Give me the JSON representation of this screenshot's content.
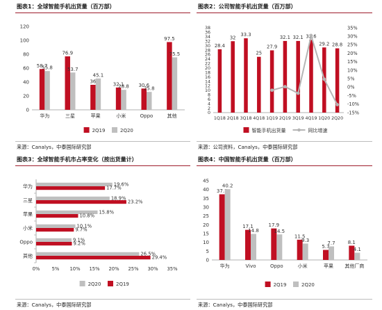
{
  "colors": {
    "red": "#c00f22",
    "gray": "#bfbfbf",
    "axis": "#999999",
    "text": "#333333",
    "lineGray": "#b5b5b5"
  },
  "figures": [
    {
      "title": "图表1：全球智能手机出货量（百万部）",
      "source": "来源：Canalys，中泰国际研究部"
    },
    {
      "title": "图表2：公司智能手机出货量（百万部）",
      "source": "来源：公司资料，Canalys，中泰国际研究部"
    },
    {
      "title": "图表3：全球智能手机市占率变化（按出货量计）",
      "source": "来源：Canalys，中泰国际研究部"
    },
    {
      "title": "图表4：中国智能手机出货量（百万部）",
      "source": "来源：Canalys，中泰国际研究部"
    }
  ],
  "chart_data": [
    {
      "type": "bar",
      "categories": [
        "华为",
        "三星",
        "苹果",
        "小米",
        "Oppo",
        "其他"
      ],
      "series": [
        {
          "name": "2Q19",
          "values": [
            58.7,
            76.9,
            36.0,
            32.1,
            30.6,
            97.5
          ]
        },
        {
          "name": "2Q20",
          "values": [
            55.8,
            53.7,
            45.1,
            28.8,
            25.8,
            75.5
          ]
        }
      ],
      "ylim": [
        0,
        120
      ],
      "yticks": [
        "0",
        "20",
        "40",
        "60",
        "80",
        "100",
        "120"
      ],
      "legend": "bottom"
    },
    {
      "type": "bar",
      "categories": [
        "1Q18",
        "2Q18",
        "3Q18",
        "4Q18",
        "1Q19",
        "2Q19",
        "3Q19",
        "4Q19",
        "1Q20",
        "2Q20"
      ],
      "series": [
        {
          "name": "智能手机出货量",
          "values": [
            28.4,
            32,
            33.3,
            25,
            27.9,
            32.1,
            32.1,
            32.6,
            29.2,
            28.8
          ],
          "labels": [
            "28.4",
            "32",
            "33.3",
            "25",
            "27.9",
            "32.1",
            "32.1",
            "32.6",
            "29.2",
            "28.8"
          ]
        },
        {
          "name": "同比增速",
          "type": "line",
          "axis": "right",
          "values": [
            null,
            null,
            null,
            null,
            -1.8,
            0.3,
            -3.6,
            30.4,
            4.7,
            -10.3
          ]
        }
      ],
      "ylim": [
        0,
        38
      ],
      "yticks": [
        "0",
        "2",
        "4",
        "6",
        "8",
        "10",
        "12",
        "14",
        "16",
        "18",
        "20",
        "22",
        "24",
        "26",
        "28",
        "30",
        "32",
        "34",
        "36",
        "38"
      ],
      "y2lim": [
        -15,
        35
      ],
      "y2ticks": [
        "-15%",
        "-10%",
        "-5%",
        "0%",
        "5%",
        "10%",
        "15%",
        "20%",
        "25%",
        "30%",
        "35%"
      ],
      "legend": "bottom"
    },
    {
      "type": "bar",
      "orientation": "horizontal",
      "categories": [
        "华为",
        "三星",
        "苹果",
        "小米",
        "Oppo",
        "其他"
      ],
      "series": [
        {
          "name": "2Q20",
          "values": [
            19.6,
            18.9,
            15.8,
            10.1,
            9.1,
            26.5
          ],
          "labels": [
            "19.6%",
            "18.9%",
            "15.8%",
            "10.1%",
            "9.1%",
            "26.5%"
          ]
        },
        {
          "name": "2Q19",
          "values": [
            17.7,
            23.2,
            10.8,
            9.7,
            9.2,
            29.4
          ],
          "labels": [
            "17.7%",
            "23.2%",
            "10.8%",
            "9.7%",
            "9.2%",
            "29.4%"
          ]
        }
      ],
      "xlim": [
        0,
        35
      ],
      "xticks": [
        "0%",
        "5%",
        "10%",
        "15%",
        "20%",
        "25%",
        "30%",
        "35%"
      ],
      "legend": "bottom"
    },
    {
      "type": "bar",
      "categories": [
        "华为",
        "Vivo",
        "Oppo",
        "小米",
        "苹果",
        "其他厂商"
      ],
      "series": [
        {
          "name": "2Q19",
          "values": [
            37.3,
            17.1,
            17.9,
            11.5,
            5.7,
            8.1
          ]
        },
        {
          "name": "2Q20",
          "values": [
            40.2,
            14.8,
            14.5,
            9.3,
            7.7,
            4.1
          ]
        }
      ],
      "ylim": [
        0,
        45
      ],
      "yticks": [
        "0",
        "5",
        "10",
        "15",
        "20",
        "25",
        "30",
        "35",
        "40",
        "45"
      ],
      "legend": "bottom"
    }
  ]
}
